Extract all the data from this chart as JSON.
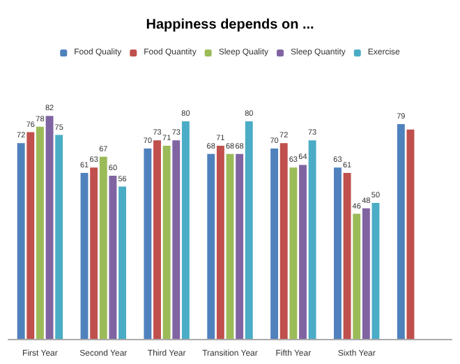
{
  "chart_data": {
    "type": "bar",
    "title": "Happiness depends on ...",
    "categories": [
      "First Year",
      "Second Year",
      "Third Year",
      "Transition Year",
      "Fifth Year",
      "Sixth Year",
      null
    ],
    "series": [
      {
        "name": "Food Quality",
        "color": "#4f81bd",
        "values": [
          72,
          61,
          70,
          68,
          70,
          63,
          79
        ],
        "value_labels": [
          "72",
          "61",
          "70",
          "68",
          "70",
          "63",
          "79"
        ]
      },
      {
        "name": "Food Quantity",
        "color": "#c0504d",
        "values": [
          76,
          63,
          73,
          71,
          72,
          61,
          77
        ],
        "value_labels": [
          "76",
          "63",
          "73",
          "71",
          "72",
          "61",
          null
        ]
      },
      {
        "name": "Sleep Quality",
        "color": "#9bbb59",
        "values": [
          78,
          67,
          71,
          68,
          63,
          46,
          null
        ],
        "value_labels": [
          "78",
          "67",
          "71",
          "68",
          "63",
          "46",
          null
        ]
      },
      {
        "name": "Sleep Quantity",
        "color": "#8064a2",
        "values": [
          82,
          60,
          73,
          68,
          64,
          48,
          null
        ],
        "value_labels": [
          "82",
          "60",
          "73",
          "68",
          "64",
          "48",
          null
        ]
      },
      {
        "name": "Exercise",
        "color": "#4bacc6",
        "values": [
          75,
          56,
          80,
          80,
          73,
          50,
          null
        ],
        "value_labels": [
          "75",
          "56",
          "80",
          "80",
          "73",
          "50",
          null
        ]
      }
    ],
    "legend": "top"
  }
}
